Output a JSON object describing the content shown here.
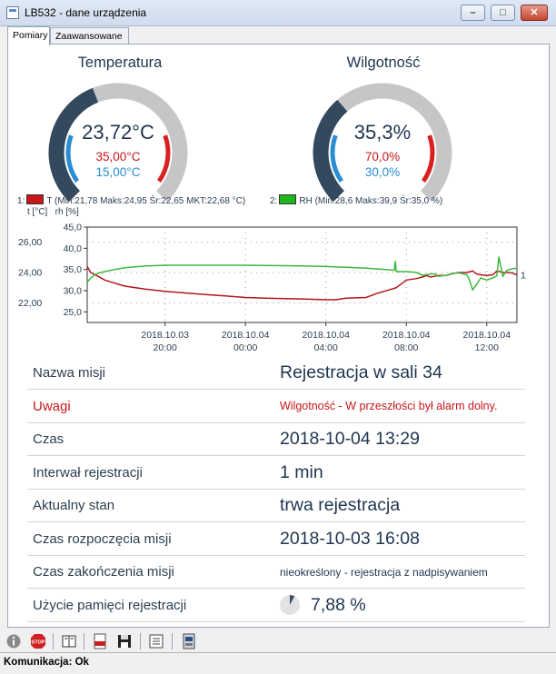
{
  "window": {
    "title": "LB532 - dane urządzenia"
  },
  "tabs": [
    {
      "label": "Pomiary"
    },
    {
      "label": "Zaawansowane"
    }
  ],
  "gauges": {
    "temperature": {
      "title": "Temperatura",
      "value": "23,72°C",
      "high": "35,00°C",
      "low": "15,00°C",
      "level": 0.42,
      "color_fill": "#34495e",
      "color_track": "#c6c6c6"
    },
    "humidity": {
      "title": "Wilgotność",
      "value": "35,3%",
      "high": "70,0%",
      "low": "30,0%",
      "level": 0.35,
      "color_fill": "#34495e",
      "color_track": "#c6c6c6"
    }
  },
  "legend": {
    "temperature": {
      "index": "1:",
      "text": "T (Min:21,78 Maks:24,95 Śr:22,65 MKT:22,68 °C)",
      "color": "#c8161b"
    },
    "humidity": {
      "index": "2:",
      "text": "RH (Min:28,6 Maks:39,9 Śr:35,0 %)",
      "color": "#1fb51f"
    }
  },
  "axis_units": "t [°C]   rh [%]",
  "chart_data": {
    "type": "line",
    "x_ticks": [
      [
        "2018.10.03",
        "20:00"
      ],
      [
        "2018.10.04",
        "00:00"
      ],
      [
        "2018.10.04",
        "04:00"
      ],
      [
        "2018.10.04",
        "08:00"
      ],
      [
        "2018.10.04",
        "12:00"
      ]
    ],
    "y_left_ticks": [
      "26,00",
      "24,00",
      "22,00"
    ],
    "y_right_ticks": [
      "45,0",
      "40,0",
      "35,0",
      "30,0",
      "25,0"
    ],
    "y_left_range": [
      20.7,
      27.0
    ],
    "y_right_range": [
      22.5,
      45.0
    ],
    "end_label": "1",
    "series": [
      {
        "name": "T",
        "color": "#b3161b",
        "t": [
          16.13,
          16.3,
          16.6,
          17,
          17.5,
          18,
          19,
          20,
          21,
          22,
          23,
          24,
          25,
          26,
          27,
          28,
          28.5,
          29,
          30,
          30.5,
          31.5,
          32,
          32.5,
          32.8,
          33,
          33.2,
          33.4,
          33.6,
          33.8,
          34,
          34.2,
          34.6,
          35,
          35.3,
          35.5,
          35.7,
          36,
          36.3,
          36.5,
          36.8,
          37.1,
          37.3,
          37.5
        ],
        "y": [
          24.4,
          24.0,
          23.8,
          23.5,
          23.3,
          23.1,
          22.9,
          22.75,
          22.65,
          22.55,
          22.45,
          22.35,
          22.3,
          22.28,
          22.25,
          22.2,
          22.2,
          22.3,
          22.35,
          22.6,
          23.0,
          23.5,
          23.6,
          23.7,
          23.8,
          23.7,
          23.75,
          23.8,
          23.8,
          23.8,
          23.9,
          24.0,
          24.0,
          24.1,
          23.9,
          23.85,
          23.8,
          23.85,
          24.1,
          24.0,
          24.0,
          23.95,
          23.85
        ]
      },
      {
        "name": "RH",
        "color": "#3db83d",
        "t": [
          16.13,
          16.3,
          16.6,
          17,
          17.5,
          18,
          19,
          20,
          22,
          24,
          26,
          27,
          28,
          28.5,
          29,
          30,
          31,
          31.4,
          31.45,
          31.5,
          32,
          32.5,
          32.8,
          33,
          33.4,
          33.6,
          34,
          34.2,
          34.6,
          35,
          35.1,
          35.3,
          35.5,
          35.7,
          36,
          36.3,
          36.5,
          36.6,
          36.8,
          37,
          37.3,
          37.5
        ],
        "y": [
          32,
          33,
          34,
          34.5,
          35,
          35.4,
          35.8,
          36,
          36,
          36,
          35.9,
          35.8,
          35.7,
          35.6,
          35.5,
          35.3,
          35,
          34.8,
          37,
          34.5,
          34.5,
          34.3,
          33.6,
          33.8,
          34.0,
          33.4,
          33.6,
          34.0,
          34.2,
          33.8,
          33.0,
          30.2,
          31.5,
          33.0,
          32.5,
          33.0,
          33.5,
          38.0,
          33.4,
          34.8,
          35.2,
          35.3
        ]
      }
    ]
  },
  "info_rows": [
    {
      "label": "Nazwa misji",
      "value": "Rejestracja w sali 34"
    },
    {
      "label": "Uwagi",
      "value": "Wilgotność - W przeszłości był alarm dolny."
    },
    {
      "label": "Czas",
      "value": "2018-10-04 13:29"
    },
    {
      "label": "Interwał rejestracji",
      "value": "1 min"
    },
    {
      "label": "Aktualny stan",
      "value": "trwa rejestracja"
    },
    {
      "label": "Czas rozpoczęcia misji",
      "value": "2018-10-03 16:08"
    },
    {
      "label": "Czas zakończenia misji",
      "value": "nieokreślony - rejestracja z nadpisywaniem"
    },
    {
      "label": "Użycie pamięci rejestracji",
      "value": "7,88 %",
      "fraction": 0.0788
    }
  ],
  "toolbar": {
    "icons": [
      "info-icon",
      "stop-icon",
      "book-icon",
      "pdf-icon",
      "save-icon",
      "list-icon",
      "device-icon"
    ]
  },
  "status": {
    "text": "Komunikacja: Ok"
  }
}
